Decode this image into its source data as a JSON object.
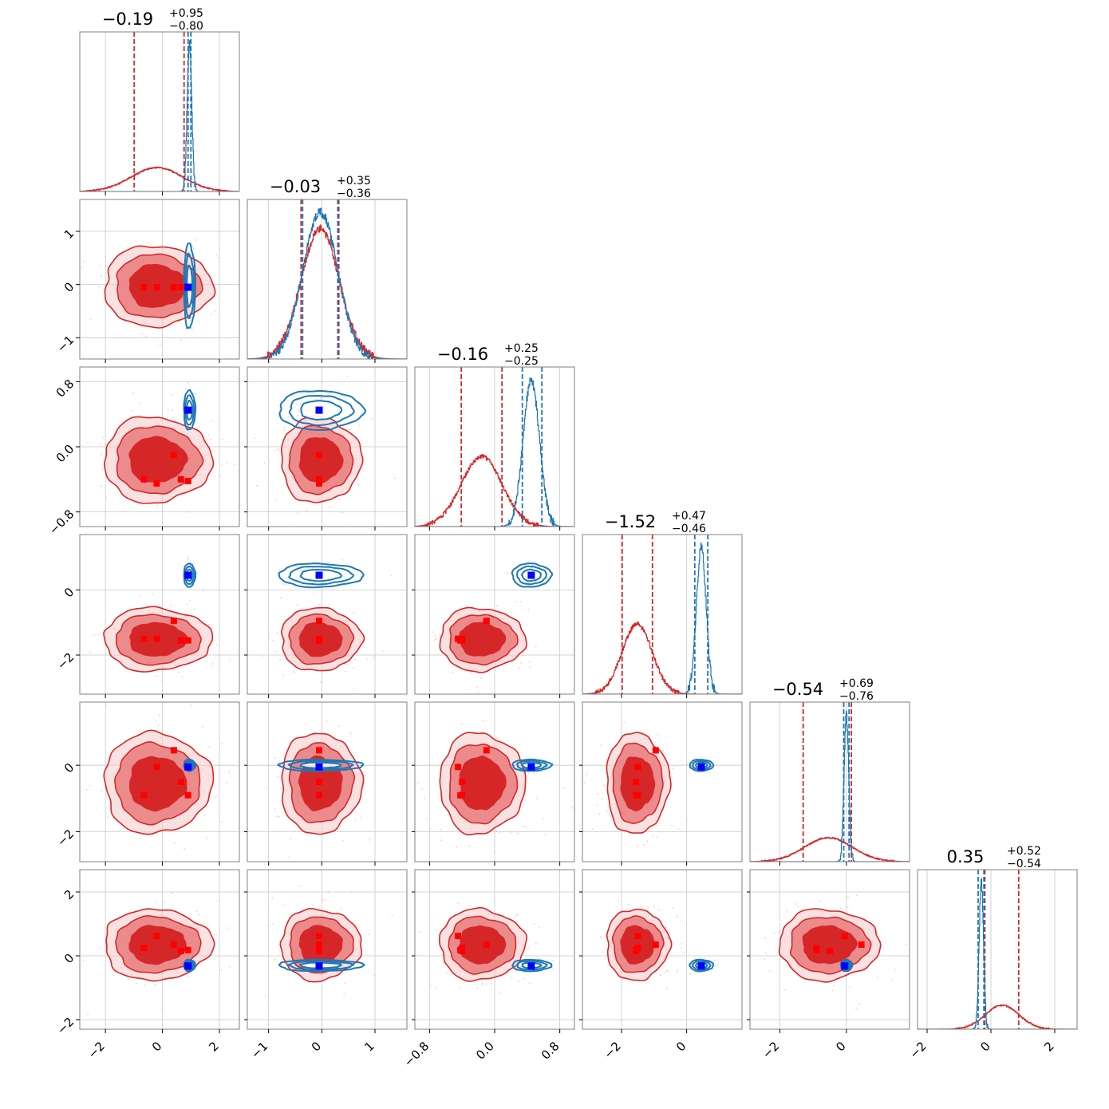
{
  "colors": {
    "red": "#d62728",
    "red_mid": "#e87b7c",
    "red_light": "#f5cacb",
    "blue": "#1f77b4",
    "truth_red": "#ff0000",
    "truth_blue": "#0000ff",
    "grid": "#c8c8c8"
  },
  "chart_data": {
    "type": "corner",
    "n_params": 6,
    "grid": true,
    "series": [
      {
        "color": "red",
        "label": ""
      },
      {
        "color": "blue",
        "label": ""
      }
    ],
    "params": [
      {
        "range": [
          -2.9,
          2.7
        ],
        "ticks": [
          -2,
          0,
          2
        ],
        "tick_labels": [
          "−2",
          "0",
          "2"
        ],
        "title_value": "−0.19",
        "title_plus": "+0.95",
        "title_minus": "−0.80",
        "red": {
          "mean": -0.19,
          "sd": 0.9,
          "q_lo": -0.99,
          "q_hi": 0.76
        },
        "blue": {
          "mean": 0.95,
          "sd": 0.08,
          "q_lo": 0.9,
          "q_hi": 1.0
        }
      },
      {
        "range": [
          -1.4,
          1.6
        ],
        "ticks": [
          -1,
          0,
          1
        ],
        "tick_labels": [
          "−1",
          "0",
          "1"
        ],
        "title_value": "−0.03",
        "title_plus": "+0.35",
        "title_minus": "−0.36",
        "red": {
          "mean": -0.03,
          "sd": 0.36,
          "q_lo": -0.39,
          "q_hi": 0.32
        },
        "blue": {
          "mean": -0.03,
          "sd": 0.33,
          "q_lo": -0.36,
          "q_hi": 0.3
        }
      },
      {
        "range": [
          -0.98,
          0.98
        ],
        "ticks": [
          -0.8,
          0.0,
          0.8
        ],
        "tick_labels": [
          "−0.8",
          "0.0",
          "0.8"
        ],
        "title_value": "−0.16",
        "title_plus": "+0.25",
        "title_minus": "−0.25",
        "red": {
          "mean": -0.16,
          "sd": 0.25,
          "q_lo": -0.41,
          "q_hi": 0.09
        },
        "blue": {
          "mean": 0.45,
          "sd": 0.1,
          "q_lo": 0.34,
          "q_hi": 0.58
        }
      },
      {
        "range": [
          -3.2,
          1.7
        ],
        "ticks": [
          -2,
          0
        ],
        "tick_labels": [
          "−2",
          "0"
        ],
        "title_value": "−1.52",
        "title_plus": "+0.47",
        "title_minus": "−0.46",
        "red": {
          "mean": -1.52,
          "sd": 0.46,
          "q_lo": -1.98,
          "q_hi": -1.05
        },
        "blue": {
          "mean": 0.45,
          "sd": 0.15,
          "q_lo": 0.25,
          "q_hi": 0.65
        }
      },
      {
        "range": [
          -2.9,
          1.9
        ],
        "ticks": [
          -2,
          0
        ],
        "tick_labels": [
          "−2",
          "0"
        ],
        "title_value": "−0.54",
        "title_plus": "+0.69",
        "title_minus": "−0.76",
        "red": {
          "mean": -0.54,
          "sd": 0.72,
          "q_lo": -1.3,
          "q_hi": 0.15
        },
        "blue": {
          "mean": 0.0,
          "sd": 0.07,
          "q_lo": -0.08,
          "q_hi": 0.08
        }
      },
      {
        "range": [
          -2.3,
          2.7
        ],
        "ticks": [
          -2,
          0,
          2
        ],
        "tick_labels": [
          "−2",
          "0",
          "2"
        ],
        "title_value": "0.35",
        "title_plus": "+0.52",
        "title_minus": "−0.54",
        "red": {
          "mean": 0.35,
          "sd": 0.53,
          "q_lo": -0.19,
          "q_hi": 0.87
        },
        "blue": {
          "mean": -0.3,
          "sd": 0.07,
          "q_lo": -0.4,
          "q_hi": -0.22
        }
      }
    ],
    "red_truth_points": [
      [
        -0.65,
        -0.05,
        -0.4,
        -1.5,
        -0.9,
        0.25
      ],
      [
        -0.2,
        -0.05,
        -0.45,
        -1.5,
        -0.05,
        0.62
      ],
      [
        0.4,
        -0.05,
        -0.1,
        -0.95,
        0.45,
        0.35
      ],
      [
        0.65,
        -0.05,
        -0.4,
        -1.55,
        -0.5,
        0.15
      ],
      [
        0.9,
        -0.05,
        -0.42,
        -1.55,
        -0.9,
        0.18
      ]
    ],
    "blue_truth": [
      0.9,
      -0.05,
      0.45,
      0.45,
      -0.05,
      -0.32
    ]
  }
}
